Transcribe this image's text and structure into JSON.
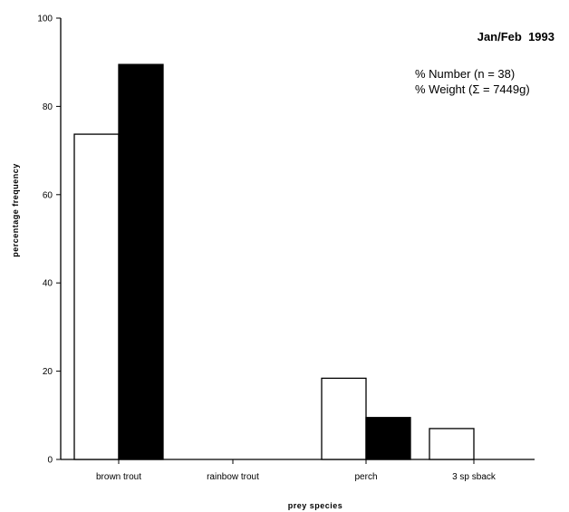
{
  "chart_data": {
    "type": "bar",
    "title": "Jan/Feb  1993",
    "xlabel": "prey  species",
    "ylabel": "percentage  frequency",
    "ylim": [
      0,
      100
    ],
    "yticks": [
      "0",
      "20",
      "40",
      "60",
      "80",
      "100"
    ],
    "categories": [
      "brown  trout",
      "rainbow  trout",
      "perch",
      "3 sp sback"
    ],
    "series": [
      {
        "name": "% Number (n = 38)",
        "fill": "#ffffff",
        "values": [
          73.7,
          0,
          18.4,
          7.0
        ]
      },
      {
        "name": "% Weight (Σ = 7449g)",
        "fill": "#000000",
        "values": [
          89.5,
          0,
          9.5,
          0
        ]
      }
    ],
    "legend": "top-right",
    "grid": false
  }
}
